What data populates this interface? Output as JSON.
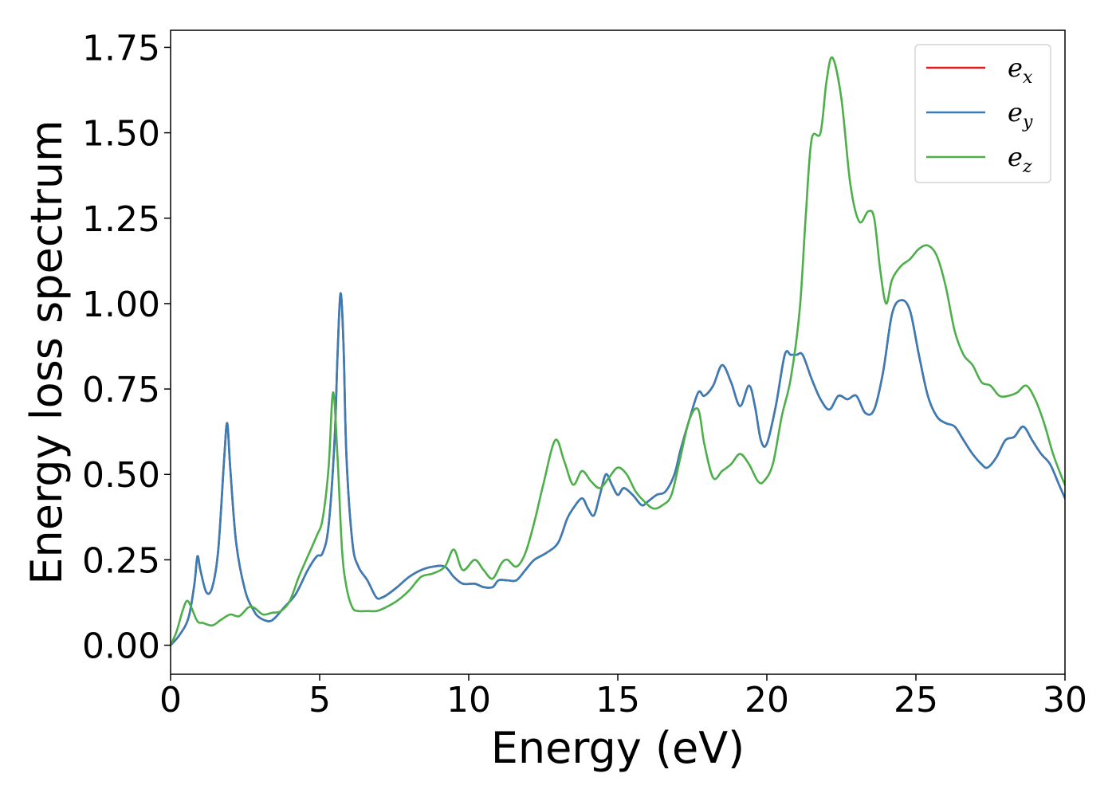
{
  "chart_data": {
    "type": "line",
    "title": "",
    "xlabel": "Energy (eV)",
    "ylabel": "Energy loss spectrum",
    "xlim": [
      0,
      30
    ],
    "ylim": [
      -0.085,
      1.8
    ],
    "xticks": [
      0,
      5,
      10,
      15,
      20,
      25,
      30
    ],
    "xtick_labels": [
      "0",
      "5",
      "10",
      "15",
      "20",
      "25",
      "30"
    ],
    "yticks": [
      0,
      0.25,
      0.5,
      0.75,
      1.0,
      1.25,
      1.5,
      1.75
    ],
    "ytick_labels": [
      "0.00",
      "0.25",
      "0.50",
      "0.75",
      "1.00",
      "1.25",
      "1.50",
      "1.75"
    ],
    "grid": false,
    "legend": {
      "placement": "top-right",
      "entries": [
        {
          "base": "e",
          "sub": "x",
          "color": "#e41a1c"
        },
        {
          "base": "e",
          "sub": "y",
          "color": "#377eb8"
        },
        {
          "base": "e",
          "sub": "z",
          "color": "#4daf4a"
        }
      ]
    },
    "series": [
      {
        "name": "e_x",
        "color": "#e41a1c",
        "x": [
          0,
          0.3,
          0.6,
          0.8,
          0.9,
          1.0,
          1.2,
          1.4,
          1.6,
          1.8,
          1.9,
          2.0,
          2.2,
          2.5,
          2.8,
          3.0,
          3.3,
          3.5,
          3.8,
          4.2,
          4.6,
          4.9,
          5.1,
          5.3,
          5.5,
          5.6,
          5.7,
          5.8,
          5.9,
          6.1,
          6.3,
          6.6,
          6.9,
          7.1,
          7.3,
          7.6,
          8.0,
          8.4,
          8.8,
          9.2,
          9.5,
          9.8,
          10.2,
          10.5,
          10.8,
          11.0,
          11.3,
          11.6,
          11.9,
          12.2,
          12.6,
          13.0,
          13.3,
          13.5,
          13.8,
          14.0,
          14.2,
          14.4,
          14.6,
          14.8,
          15.0,
          15.2,
          15.5,
          15.8,
          16.0,
          16.3,
          16.6,
          16.9,
          17.1,
          17.4,
          17.7,
          17.9,
          18.2,
          18.5,
          18.8,
          19.1,
          19.4,
          19.6,
          19.8,
          20.0,
          20.3,
          20.6,
          20.8,
          21.0,
          21.2,
          21.5,
          21.8,
          22.1,
          22.4,
          22.7,
          23.0,
          23.3,
          23.6,
          23.9,
          24.2,
          24.5,
          24.8,
          25.1,
          25.4,
          25.7,
          26.0,
          26.3,
          26.6,
          26.9,
          27.2,
          27.4,
          27.7,
          28.0,
          28.3,
          28.6,
          28.9,
          29.2,
          29.5,
          29.8,
          30.0
        ],
        "y": [
          0,
          0.03,
          0.08,
          0.18,
          0.26,
          0.22,
          0.155,
          0.17,
          0.28,
          0.55,
          0.65,
          0.52,
          0.3,
          0.16,
          0.1,
          0.08,
          0.07,
          0.08,
          0.11,
          0.15,
          0.22,
          0.26,
          0.27,
          0.35,
          0.6,
          0.85,
          1.03,
          0.88,
          0.55,
          0.3,
          0.23,
          0.19,
          0.14,
          0.14,
          0.15,
          0.17,
          0.2,
          0.22,
          0.23,
          0.23,
          0.2,
          0.18,
          0.18,
          0.17,
          0.17,
          0.19,
          0.19,
          0.19,
          0.22,
          0.25,
          0.27,
          0.3,
          0.37,
          0.4,
          0.43,
          0.4,
          0.38,
          0.44,
          0.5,
          0.47,
          0.44,
          0.46,
          0.44,
          0.41,
          0.42,
          0.44,
          0.45,
          0.5,
          0.57,
          0.66,
          0.74,
          0.73,
          0.76,
          0.82,
          0.77,
          0.7,
          0.76,
          0.7,
          0.6,
          0.59,
          0.7,
          0.85,
          0.85,
          0.85,
          0.85,
          0.78,
          0.72,
          0.69,
          0.73,
          0.72,
          0.73,
          0.68,
          0.69,
          0.8,
          0.97,
          1.01,
          0.98,
          0.85,
          0.73,
          0.67,
          0.65,
          0.64,
          0.6,
          0.56,
          0.53,
          0.52,
          0.55,
          0.6,
          0.61,
          0.64,
          0.6,
          0.56,
          0.53,
          0.47,
          0.43
        ]
      },
      {
        "name": "e_y",
        "color": "#377eb8",
        "x": [
          0,
          0.3,
          0.6,
          0.8,
          0.9,
          1.0,
          1.2,
          1.4,
          1.6,
          1.8,
          1.9,
          2.0,
          2.2,
          2.5,
          2.8,
          3.0,
          3.3,
          3.5,
          3.8,
          4.2,
          4.6,
          4.9,
          5.1,
          5.3,
          5.5,
          5.6,
          5.7,
          5.8,
          5.9,
          6.1,
          6.3,
          6.6,
          6.9,
          7.1,
          7.3,
          7.6,
          8.0,
          8.4,
          8.8,
          9.2,
          9.5,
          9.8,
          10.2,
          10.5,
          10.8,
          11.0,
          11.3,
          11.6,
          11.9,
          12.2,
          12.6,
          13.0,
          13.3,
          13.5,
          13.8,
          14.0,
          14.2,
          14.4,
          14.6,
          14.8,
          15.0,
          15.2,
          15.5,
          15.8,
          16.0,
          16.3,
          16.6,
          16.9,
          17.1,
          17.4,
          17.7,
          17.9,
          18.2,
          18.5,
          18.8,
          19.1,
          19.4,
          19.6,
          19.8,
          20.0,
          20.3,
          20.6,
          20.8,
          21.0,
          21.2,
          21.5,
          21.8,
          22.1,
          22.4,
          22.7,
          23.0,
          23.3,
          23.6,
          23.9,
          24.2,
          24.5,
          24.8,
          25.1,
          25.4,
          25.7,
          26.0,
          26.3,
          26.6,
          26.9,
          27.2,
          27.4,
          27.7,
          28.0,
          28.3,
          28.6,
          28.9,
          29.2,
          29.5,
          29.8,
          30.0
        ],
        "y": [
          0,
          0.03,
          0.08,
          0.18,
          0.26,
          0.22,
          0.155,
          0.17,
          0.28,
          0.55,
          0.65,
          0.52,
          0.3,
          0.16,
          0.1,
          0.08,
          0.07,
          0.08,
          0.11,
          0.15,
          0.22,
          0.26,
          0.27,
          0.35,
          0.6,
          0.85,
          1.03,
          0.88,
          0.55,
          0.3,
          0.23,
          0.19,
          0.14,
          0.14,
          0.15,
          0.17,
          0.2,
          0.22,
          0.23,
          0.23,
          0.2,
          0.18,
          0.18,
          0.17,
          0.17,
          0.19,
          0.19,
          0.19,
          0.22,
          0.25,
          0.27,
          0.3,
          0.37,
          0.4,
          0.43,
          0.4,
          0.38,
          0.44,
          0.5,
          0.47,
          0.44,
          0.46,
          0.44,
          0.41,
          0.42,
          0.44,
          0.45,
          0.5,
          0.57,
          0.66,
          0.74,
          0.73,
          0.76,
          0.82,
          0.77,
          0.7,
          0.76,
          0.7,
          0.6,
          0.59,
          0.7,
          0.85,
          0.85,
          0.85,
          0.85,
          0.78,
          0.72,
          0.69,
          0.73,
          0.72,
          0.73,
          0.68,
          0.69,
          0.8,
          0.97,
          1.01,
          0.98,
          0.85,
          0.73,
          0.67,
          0.65,
          0.64,
          0.6,
          0.56,
          0.53,
          0.52,
          0.55,
          0.6,
          0.61,
          0.64,
          0.6,
          0.56,
          0.53,
          0.47,
          0.43
        ]
      },
      {
        "name": "e_z",
        "color": "#4daf4a",
        "x": [
          0,
          0.2,
          0.4,
          0.55,
          0.7,
          0.9,
          1.1,
          1.4,
          1.7,
          2.0,
          2.3,
          2.6,
          2.8,
          3.1,
          3.4,
          3.7,
          4.0,
          4.3,
          4.6,
          4.9,
          5.1,
          5.3,
          5.45,
          5.6,
          5.75,
          5.9,
          6.1,
          6.3,
          6.6,
          6.9,
          7.2,
          7.6,
          8.0,
          8.4,
          8.8,
          9.2,
          9.5,
          9.8,
          10.2,
          10.5,
          10.8,
          11.1,
          11.3,
          11.6,
          11.9,
          12.2,
          12.5,
          12.9,
          13.2,
          13.5,
          13.8,
          14.1,
          14.4,
          14.7,
          15.0,
          15.3,
          15.6,
          15.9,
          16.2,
          16.5,
          16.8,
          17.1,
          17.4,
          17.7,
          17.9,
          18.2,
          18.5,
          18.8,
          19.1,
          19.4,
          19.7,
          19.9,
          20.2,
          20.5,
          20.8,
          21.1,
          21.3,
          21.5,
          21.8,
          22.0,
          22.2,
          22.5,
          22.8,
          23.1,
          23.4,
          23.6,
          23.8,
          24.0,
          24.2,
          24.5,
          24.8,
          25.1,
          25.4,
          25.7,
          26.0,
          26.3,
          26.6,
          26.9,
          27.2,
          27.5,
          27.8,
          28.1,
          28.4,
          28.7,
          29.0,
          29.3,
          29.6,
          29.9,
          30.0
        ],
        "y": [
          0,
          0.04,
          0.1,
          0.13,
          0.11,
          0.07,
          0.065,
          0.058,
          0.075,
          0.09,
          0.085,
          0.11,
          0.11,
          0.09,
          0.095,
          0.1,
          0.13,
          0.2,
          0.26,
          0.32,
          0.37,
          0.52,
          0.74,
          0.55,
          0.28,
          0.17,
          0.11,
          0.1,
          0.1,
          0.1,
          0.11,
          0.13,
          0.16,
          0.2,
          0.21,
          0.23,
          0.28,
          0.22,
          0.25,
          0.22,
          0.195,
          0.24,
          0.25,
          0.23,
          0.27,
          0.36,
          0.47,
          0.6,
          0.54,
          0.47,
          0.51,
          0.48,
          0.46,
          0.49,
          0.52,
          0.5,
          0.45,
          0.42,
          0.4,
          0.41,
          0.44,
          0.55,
          0.66,
          0.69,
          0.59,
          0.49,
          0.51,
          0.53,
          0.56,
          0.53,
          0.48,
          0.48,
          0.53,
          0.67,
          0.78,
          0.98,
          1.25,
          1.48,
          1.5,
          1.65,
          1.72,
          1.6,
          1.35,
          1.24,
          1.27,
          1.25,
          1.1,
          1.0,
          1.07,
          1.11,
          1.13,
          1.16,
          1.17,
          1.14,
          1.05,
          0.92,
          0.85,
          0.82,
          0.77,
          0.76,
          0.73,
          0.73,
          0.74,
          0.76,
          0.72,
          0.65,
          0.56,
          0.49,
          0.47
        ]
      }
    ]
  }
}
